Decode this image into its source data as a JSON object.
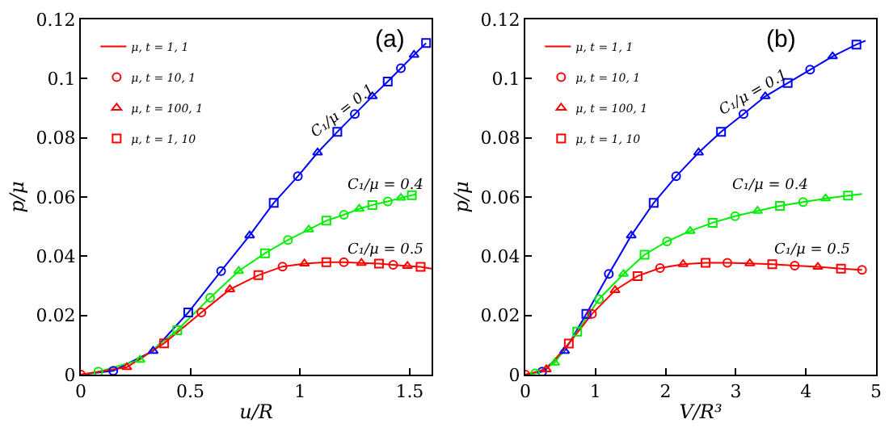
{
  "chart_data": [
    {
      "type": "line",
      "xlabel": "u/R",
      "ylabel": "p/μ",
      "xlim": [
        0,
        1.6
      ],
      "xticks": [
        0,
        0.5,
        1,
        1.5
      ],
      "ylim": [
        0,
        0.12
      ],
      "yticks": [
        0,
        0.02,
        0.04,
        0.06,
        0.08,
        0.1,
        0.12
      ],
      "grid": false,
      "legend": "top left",
      "annotations": [
        "(a)",
        "C₁/μ = 0.1",
        "C₁/μ = 0.4",
        "C₁/μ = 0.5"
      ],
      "series": [
        {
          "type": "line",
          "color": "#0000ff",
          "x": [
            0,
            0.148,
            0.33,
            0.49,
            0.64,
            0.77,
            0.88,
            0.99,
            1.08,
            1.17,
            1.25,
            1.33,
            1.4,
            1.46,
            1.52,
            1.575
          ],
          "values": [
            0,
            0.0013,
            0.008,
            0.021,
            0.035,
            0.047,
            0.058,
            0.067,
            0.075,
            0.082,
            0.088,
            0.094,
            0.099,
            0.1035,
            0.108,
            0.112
          ]
        },
        {
          "type": "scatter",
          "marker": "circle",
          "color": "#0000ff",
          "x": [
            0.148,
            0.64,
            0.99,
            1.25,
            1.46
          ],
          "values": [
            0.0013,
            0.035,
            0.067,
            0.088,
            0.1035
          ]
        },
        {
          "type": "scatter",
          "marker": "triangle",
          "color": "#0000ff",
          "x": [
            0.33,
            0.77,
            1.08,
            1.33,
            1.52
          ],
          "values": [
            0.008,
            0.047,
            0.075,
            0.094,
            0.108
          ]
        },
        {
          "type": "scatter",
          "marker": "square",
          "color": "#0000ff",
          "x": [
            0.49,
            0.88,
            1.17,
            1.4,
            1.575
          ],
          "values": [
            0.021,
            0.058,
            0.082,
            0.099,
            0.112
          ]
        },
        {
          "type": "line",
          "color": "#00ee00",
          "x": [
            0,
            0.08,
            0.27,
            0.44,
            0.59,
            0.72,
            0.84,
            0.945,
            1.04,
            1.12,
            1.2,
            1.27,
            1.33,
            1.4,
            1.46,
            1.51,
            1.53
          ],
          "values": [
            0,
            0.001,
            0.005,
            0.015,
            0.026,
            0.035,
            0.041,
            0.0455,
            0.049,
            0.052,
            0.054,
            0.056,
            0.0573,
            0.0585,
            0.0597,
            0.0606,
            0.061
          ]
        },
        {
          "type": "scatter",
          "marker": "circle",
          "color": "#00ee00",
          "x": [
            0.08,
            0.59,
            0.945,
            1.2,
            1.4
          ],
          "values": [
            0.001,
            0.026,
            0.0455,
            0.054,
            0.0585
          ]
        },
        {
          "type": "scatter",
          "marker": "triangle",
          "color": "#00ee00",
          "x": [
            0.27,
            0.72,
            1.04,
            1.27,
            1.46
          ],
          "values": [
            0.005,
            0.035,
            0.049,
            0.056,
            0.0597
          ]
        },
        {
          "type": "scatter",
          "marker": "square",
          "color": "#00ee00",
          "x": [
            0.44,
            0.84,
            1.12,
            1.33,
            1.51
          ],
          "values": [
            0.015,
            0.041,
            0.052,
            0.0573,
            0.0606
          ]
        },
        {
          "type": "line",
          "name": "μ, t = 1, 1",
          "color": "#ff0000",
          "x": [
            0,
            0.21,
            0.38,
            0.55,
            0.68,
            0.81,
            0.92,
            1.02,
            1.12,
            1.2,
            1.28,
            1.36,
            1.425,
            1.49,
            1.55,
            1.6
          ],
          "values": [
            0,
            0.0025,
            0.0106,
            0.021,
            0.0288,
            0.0336,
            0.0365,
            0.0375,
            0.038,
            0.038,
            0.0377,
            0.0375,
            0.0371,
            0.0367,
            0.0364,
            0.0358
          ]
        },
        {
          "type": "scatter",
          "name": "μ, t = 10, 1",
          "marker": "circle",
          "color": "#ff0000",
          "x": [
            0,
            0.55,
            0.92,
            1.2,
            1.425
          ],
          "values": [
            0,
            0.021,
            0.0365,
            0.038,
            0.0371
          ]
        },
        {
          "type": "scatter",
          "name": "μ, t = 100, 1",
          "marker": "triangle",
          "color": "#ff0000",
          "x": [
            0.21,
            0.68,
            1.02,
            1.28,
            1.49
          ],
          "values": [
            0.0025,
            0.0288,
            0.0375,
            0.0377,
            0.0367
          ]
        },
        {
          "type": "scatter",
          "name": "μ, t = 1, 10",
          "marker": "square",
          "color": "#ff0000",
          "x": [
            0.38,
            0.81,
            1.12,
            1.36,
            1.55
          ],
          "values": [
            0.0106,
            0.0336,
            0.038,
            0.0375,
            0.0364
          ]
        }
      ]
    },
    {
      "type": "line",
      "xlabel": "V/R³",
      "ylabel": "p/μ",
      "xlim": [
        0,
        5
      ],
      "xticks": [
        0,
        1,
        2,
        3,
        4,
        5
      ],
      "ylim": [
        0,
        0.12
      ],
      "yticks": [
        0,
        0.02,
        0.04,
        0.06,
        0.08,
        0.1,
        0.12
      ],
      "grid": false,
      "legend": "top left",
      "annotations": [
        "(b)",
        "C₁/μ = 0.1",
        "C₁/μ = 0.4",
        "C₁/μ = 0.5"
      ],
      "series": [
        {
          "type": "line",
          "color": "#0000ff",
          "x": [
            0,
            0.24,
            0.56,
            0.87,
            1.19,
            1.51,
            1.83,
            2.15,
            2.47,
            2.79,
            3.11,
            3.42,
            3.74,
            4.06,
            4.38,
            4.72,
            4.85
          ],
          "values": [
            0,
            0.001,
            0.008,
            0.0205,
            0.034,
            0.047,
            0.058,
            0.067,
            0.075,
            0.082,
            0.088,
            0.094,
            0.0985,
            0.103,
            0.1075,
            0.1115,
            0.1128
          ]
        },
        {
          "type": "scatter",
          "marker": "circle",
          "color": "#0000ff",
          "x": [
            0.24,
            1.19,
            2.15,
            3.11,
            4.06
          ],
          "values": [
            0.001,
            0.034,
            0.067,
            0.088,
            0.103
          ]
        },
        {
          "type": "scatter",
          "marker": "triangle",
          "color": "#0000ff",
          "x": [
            0.56,
            1.51,
            2.47,
            3.42,
            4.38
          ],
          "values": [
            0.008,
            0.047,
            0.075,
            0.094,
            0.1075
          ]
        },
        {
          "type": "scatter",
          "marker": "square",
          "color": "#0000ff",
          "x": [
            0.87,
            1.83,
            2.79,
            3.74,
            4.72
          ],
          "values": [
            0.0205,
            0.058,
            0.082,
            0.0985,
            0.1115
          ]
        },
        {
          "type": "line",
          "color": "#00ee00",
          "x": [
            0,
            0.14,
            0.42,
            0.74,
            1.05,
            1.4,
            1.7,
            2.02,
            2.35,
            2.67,
            2.99,
            3.31,
            3.63,
            3.96,
            4.28,
            4.6,
            4.8
          ],
          "values": [
            0,
            0.0004,
            0.004,
            0.0145,
            0.0255,
            0.034,
            0.0405,
            0.045,
            0.0485,
            0.0513,
            0.0535,
            0.0553,
            0.057,
            0.0583,
            0.0595,
            0.0605,
            0.061
          ]
        },
        {
          "type": "scatter",
          "marker": "circle",
          "color": "#00ee00",
          "x": [
            0.14,
            1.05,
            2.02,
            2.99,
            3.96
          ],
          "values": [
            0.0004,
            0.0255,
            0.045,
            0.0535,
            0.0583
          ]
        },
        {
          "type": "scatter",
          "marker": "triangle",
          "color": "#00ee00",
          "x": [
            0.42,
            1.4,
            2.35,
            3.31,
            4.28
          ],
          "values": [
            0.004,
            0.034,
            0.0485,
            0.0553,
            0.0595
          ]
        },
        {
          "type": "scatter",
          "marker": "square",
          "color": "#00ee00",
          "x": [
            0.74,
            1.7,
            2.67,
            3.63,
            4.6
          ],
          "values": [
            0.0145,
            0.0405,
            0.0513,
            0.057,
            0.0605
          ]
        },
        {
          "type": "line",
          "name": "μ, t = 1, 1",
          "color": "#ff0000",
          "x": [
            0,
            0.3,
            0.62,
            0.95,
            1.28,
            1.6,
            1.92,
            2.25,
            2.57,
            2.88,
            3.2,
            3.52,
            3.84,
            4.17,
            4.5,
            4.8
          ],
          "values": [
            0,
            0.0018,
            0.0105,
            0.0205,
            0.0285,
            0.0333,
            0.036,
            0.0373,
            0.0378,
            0.0378,
            0.0376,
            0.0373,
            0.0368,
            0.0364,
            0.0358,
            0.0354
          ]
        },
        {
          "type": "scatter",
          "name": "μ, t = 10, 1",
          "marker": "circle",
          "color": "#ff0000",
          "x": [
            0,
            0.95,
            1.92,
            2.88,
            3.84,
            4.8
          ],
          "values": [
            0,
            0.0205,
            0.036,
            0.0378,
            0.0368,
            0.0354
          ]
        },
        {
          "type": "scatter",
          "name": "μ, t = 100, 1",
          "marker": "triangle",
          "color": "#ff0000",
          "x": [
            0.3,
            1.28,
            2.25,
            3.2,
            4.17
          ],
          "values": [
            0.0018,
            0.0285,
            0.0373,
            0.0376,
            0.0364
          ]
        },
        {
          "type": "scatter",
          "name": "μ, t = 1, 10",
          "marker": "square",
          "color": "#ff0000",
          "x": [
            0.62,
            1.6,
            2.57,
            3.52,
            4.5
          ],
          "values": [
            0.0105,
            0.0333,
            0.0378,
            0.0373,
            0.0358
          ]
        }
      ]
    }
  ]
}
